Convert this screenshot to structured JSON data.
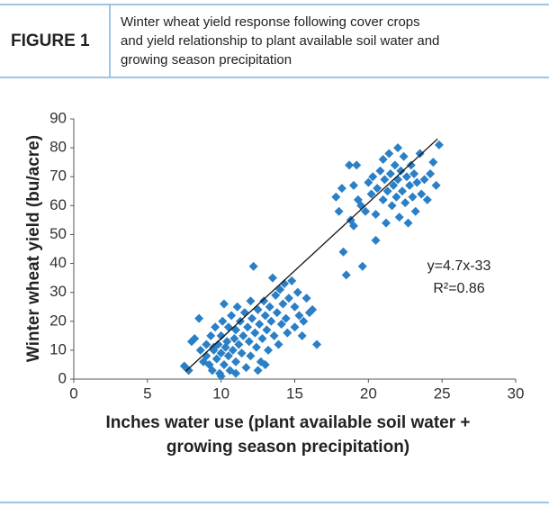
{
  "header": {
    "figure_label": "FIGURE 1",
    "caption": [
      "Winter wheat yield response following cover crops",
      "and yield relationship to plant available soil water and",
      "growing season precipitation"
    ]
  },
  "chart_data": {
    "type": "scatter",
    "xlabel": [
      "Inches water use (plant available soil water +",
      "growing season precipitation)"
    ],
    "ylabel": "Winter wheat yield (bu/acre)",
    "color": "#2b7fc6",
    "xlim": [
      0,
      30
    ],
    "xticks": [
      0,
      5,
      10,
      15,
      20,
      25,
      30
    ],
    "ylim": [
      0,
      90
    ],
    "yticks": [
      0,
      10,
      20,
      30,
      40,
      50,
      60,
      70,
      80,
      90
    ],
    "x": [
      7.5,
      7.8,
      8,
      8.2,
      8.5,
      8.6,
      8.8,
      9,
      9,
      9.2,
      9.3,
      9.4,
      9.5,
      9.6,
      9.7,
      9.8,
      9.9,
      10,
      10,
      10.1,
      10.2,
      10.2,
      10.3,
      10.4,
      10.5,
      10.5,
      10.6,
      10.7,
      10.8,
      10.9,
      11,
      11,
      11.1,
      11.2,
      11.3,
      11.4,
      11.5,
      11.6,
      11.7,
      11.8,
      11.9,
      12,
      12,
      12.1,
      12.2,
      12.3,
      12.4,
      12.5,
      12.6,
      12.7,
      12.8,
      12.9,
      13,
      13.1,
      13.2,
      13.3,
      13.4,
      13.5,
      13.6,
      13.7,
      13.8,
      13.9,
      14,
      14.1,
      14.2,
      14.3,
      14.4,
      14.5,
      14.6,
      14.8,
      15,
      15,
      15.2,
      15.3,
      15.5,
      15.6,
      15.8,
      16,
      16.2,
      16.5,
      12.5,
      11,
      10,
      9.5,
      13,
      17.8,
      18,
      18.2,
      18.3,
      18.5,
      18.7,
      18.8,
      19,
      19.2,
      19.3,
      19.5,
      19.6,
      19.8,
      20,
      20.2,
      20.3,
      20.5,
      20.6,
      20.8,
      21,
      21,
      21.1,
      21.2,
      21.3,
      21.4,
      21.5,
      21.6,
      21.7,
      21.8,
      21.9,
      22,
      22,
      22.1,
      22.2,
      22.3,
      22.4,
      22.5,
      22.6,
      22.7,
      22.8,
      22.9,
      23,
      23.1,
      23.2,
      23.3,
      23.5,
      23.6,
      23.8,
      24,
      24.2,
      24.4,
      24.6,
      24.8,
      20.5,
      19
    ],
    "values": [
      4.5,
      3,
      13,
      14,
      21,
      10,
      6,
      12,
      8,
      5,
      15,
      3,
      10,
      18,
      7,
      12,
      2,
      9,
      15,
      20,
      26,
      5,
      11,
      13,
      8,
      18,
      3,
      22,
      10,
      14,
      17,
      6,
      25,
      12,
      20,
      9,
      15,
      23,
      4,
      18,
      13,
      27,
      8,
      21,
      39,
      16,
      11,
      24,
      19,
      6,
      14,
      27,
      22,
      17,
      10,
      25,
      20,
      35,
      15,
      29,
      23,
      12,
      31,
      19,
      26,
      33,
      21,
      16,
      28,
      34,
      25,
      18,
      30,
      22,
      15,
      20,
      28,
      23,
      24,
      12,
      3,
      2,
      1,
      11,
      5,
      63,
      58,
      66,
      44,
      36,
      74,
      55,
      67,
      74,
      62,
      60,
      39,
      58,
      68,
      64,
      70,
      57,
      66,
      72,
      62,
      76,
      69,
      54,
      65,
      78,
      71,
      60,
      67,
      74,
      63,
      80,
      69,
      56,
      72,
      65,
      77,
      61,
      70,
      54,
      67,
      74,
      63,
      71,
      58,
      68,
      78,
      64,
      69,
      62,
      71,
      75,
      67,
      81,
      48,
      53
    ],
    "trendline": {
      "slope": 4.7,
      "intercept": -33,
      "xrange": [
        7.6,
        24.7
      ]
    },
    "equation": "y=4.7x-33",
    "r_squared": "R²=0.86"
  }
}
